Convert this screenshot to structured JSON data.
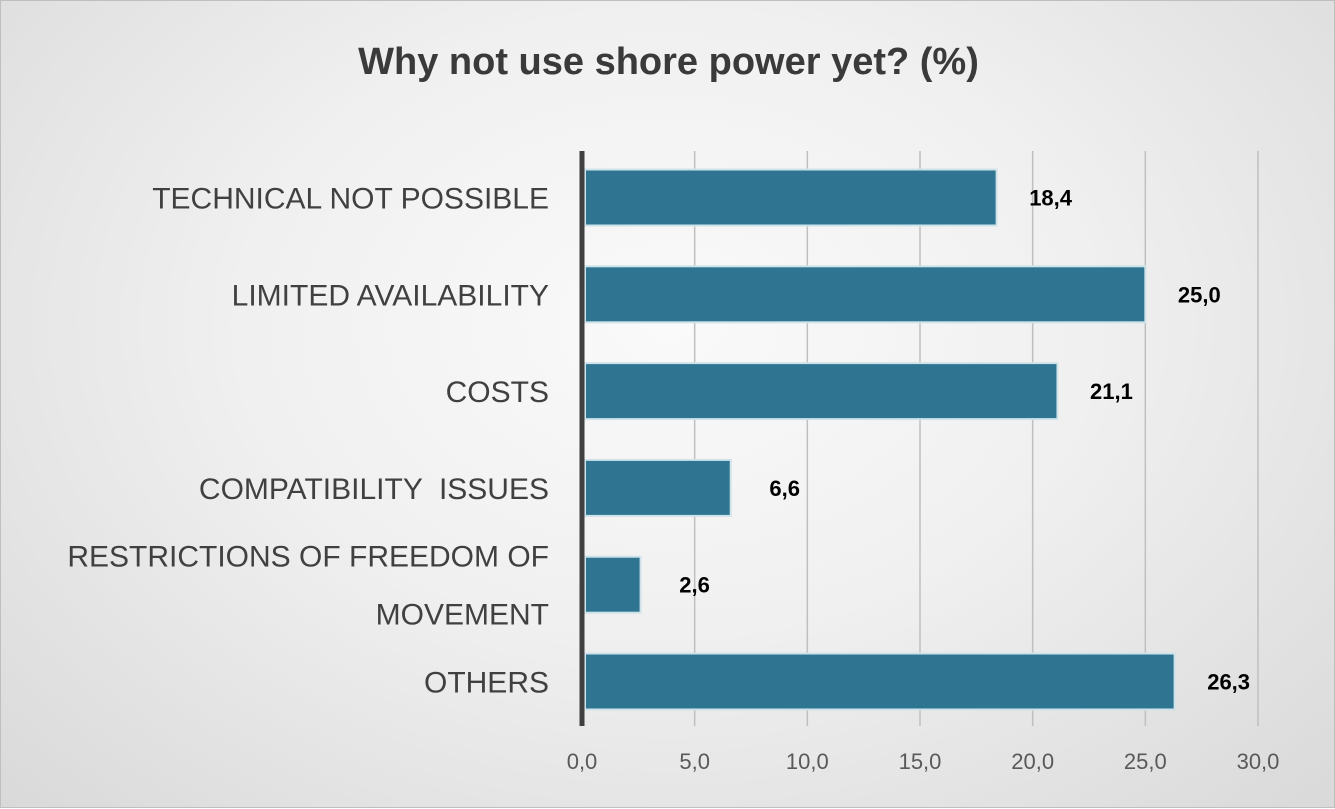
{
  "chart_data": {
    "type": "bar",
    "orientation": "horizontal",
    "title": "Why not use shore power yet? (%)",
    "xlabel": "",
    "ylabel": "",
    "categories": [
      [
        "TECHNICAL NOT POSSIBLE"
      ],
      [
        "LIMITED AVAILABILITY"
      ],
      [
        "COSTS"
      ],
      [
        "COMPATIBILITY  ISSUES"
      ],
      [
        "RESTRICTIONS OF FREEDOM OF",
        "MOVEMENT"
      ],
      [
        "OTHERS"
      ]
    ],
    "values": [
      18.4,
      25.0,
      21.1,
      6.6,
      2.6,
      26.3
    ],
    "value_labels": [
      "18,4",
      "25,0",
      "21,1",
      "6,6",
      "2,6",
      "26,3"
    ],
    "xlim": [
      0,
      30
    ],
    "ticks": [
      0,
      5,
      10,
      15,
      20,
      25,
      30
    ],
    "tick_labels": [
      "0,0",
      "5,0",
      "10,0",
      "15,0",
      "20,0",
      "25,0",
      "30,0"
    ],
    "grid": true,
    "legend": "none",
    "colors": {
      "bar": "#2f7591",
      "bar_edge": "#cfe3ea",
      "axis": "#404040",
      "grid": "#bfbfbf"
    }
  }
}
